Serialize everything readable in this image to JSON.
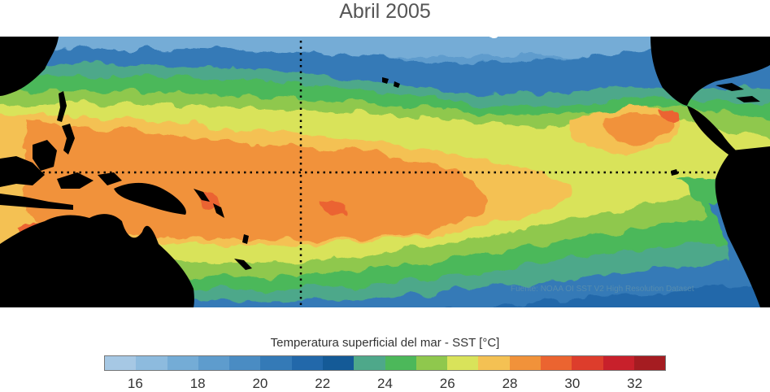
{
  "title": "Abril 2005",
  "colorbar": {
    "caption": "Temperatura superficial del mar - SST  [°C]",
    "range": [
      15,
      33
    ],
    "colors": [
      "#a6c8e4",
      "#8dbbde",
      "#74acd6",
      "#5e9ccd",
      "#4a8cc3",
      "#347ab7",
      "#2268aa",
      "#145a97",
      "#4ea88a",
      "#4cb85a",
      "#8fc84d",
      "#d9e35a",
      "#f4c153",
      "#f1923a",
      "#eb6430",
      "#dd3d2c",
      "#c8202b",
      "#a51c21"
    ],
    "ticks": [
      "16",
      "18",
      "20",
      "22",
      "24",
      "26",
      "28",
      "30",
      "32"
    ]
  },
  "credit": "Fuente: NOAA OI SST V2 High Resolution Dataset"
}
